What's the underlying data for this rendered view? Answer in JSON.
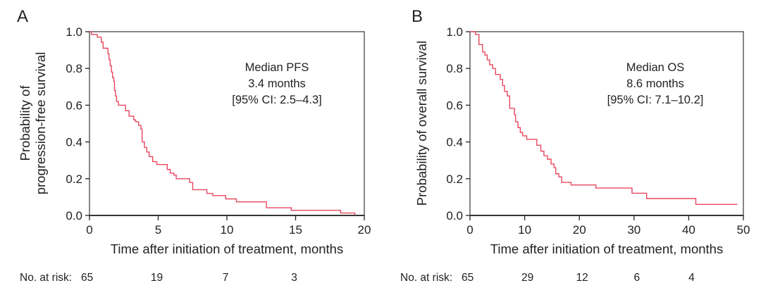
{
  "curve_color": "#e8485f",
  "chart_data": [
    {
      "type": "line",
      "step": true,
      "panel_label": "A",
      "xlabel": "Time after initiation of treatment, months",
      "ylabel_lines": [
        "Probability of",
        "progression-free survival"
      ],
      "xlim": [
        0,
        20
      ],
      "ylim": [
        0,
        1
      ],
      "xticks": [
        0,
        5,
        10,
        15,
        20
      ],
      "yticks": [
        "0.0",
        "0.2",
        "0.4",
        "0.6",
        "0.8",
        "1.0"
      ],
      "annotation": [
        "Median PFS",
        "3.4 months",
        "[95% CI: 2.5–4.3]"
      ],
      "risk_label": "No. at risk:",
      "risk_table": [
        {
          "x": 0,
          "n": "65"
        },
        {
          "x": 5,
          "n": "19"
        },
        {
          "x": 10,
          "n": "7"
        },
        {
          "x": 15,
          "n": "3"
        }
      ],
      "series": [
        {
          "x": [
            0,
            0.14,
            0.57,
            0.86,
            0.99,
            1.34,
            1.42,
            1.51,
            1.6,
            1.68,
            1.77,
            1.82,
            1.89,
            1.97,
            2.11,
            2.62,
            2.88,
            3.22,
            3.36,
            3.57,
            3.74,
            3.83,
            4.0,
            4.17,
            4.34,
            4.6,
            4.9,
            5.66,
            5.88,
            6.14,
            6.31,
            7.29,
            7.51,
            8.54,
            8.97,
            9.91,
            10.69,
            12.88,
            14.68,
            18.28,
            19.31
          ],
          "y": [
            1.0,
            0.985,
            0.97,
            0.943,
            0.91,
            0.88,
            0.847,
            0.815,
            0.78,
            0.75,
            0.73,
            0.68,
            0.65,
            0.62,
            0.6,
            0.57,
            0.54,
            0.52,
            0.51,
            0.49,
            0.47,
            0.4,
            0.37,
            0.345,
            0.32,
            0.293,
            0.277,
            0.25,
            0.23,
            0.22,
            0.2,
            0.18,
            0.14,
            0.12,
            0.108,
            0.09,
            0.074,
            0.042,
            0.028,
            0.013,
            0.003
          ]
        }
      ]
    },
    {
      "type": "line",
      "step": true,
      "panel_label": "B",
      "xlabel": "Time after initiation of treatment, months",
      "ylabel_lines": [
        "Probability of overall survival"
      ],
      "xlim": [
        0,
        50
      ],
      "ylim": [
        0,
        1
      ],
      "xticks": [
        0,
        10,
        20,
        30,
        40,
        50
      ],
      "yticks": [
        "0.0",
        "0.2",
        "0.4",
        "0.6",
        "0.8",
        "1.0"
      ],
      "annotation": [
        "Median OS",
        "8.6 months",
        "[95% CI: 7.1–10.2]"
      ],
      "risk_label": "No. at risk:",
      "risk_table": [
        {
          "x": 0,
          "n": "65"
        },
        {
          "x": 10,
          "n": "29"
        },
        {
          "x": 20,
          "n": "12"
        },
        {
          "x": 30,
          "n": "6"
        },
        {
          "x": 40,
          "n": "4"
        }
      ],
      "series": [
        {
          "x": [
            0,
            0.99,
            1.64,
            2.29,
            2.72,
            3.15,
            3.59,
            4.15,
            4.67,
            5.53,
            5.96,
            6.31,
            6.83,
            7.26,
            8.12,
            8.34,
            8.77,
            9.2,
            9.63,
            10.37,
            12.22,
            12.96,
            13.52,
            14.17,
            14.82,
            15.38,
            15.68,
            16.24,
            16.76,
            18.49,
            23.02,
            29.63,
            32.31,
            41.3
          ],
          "y": [
            1.0,
            0.985,
            0.93,
            0.89,
            0.873,
            0.847,
            0.82,
            0.8,
            0.767,
            0.74,
            0.707,
            0.675,
            0.65,
            0.583,
            0.548,
            0.51,
            0.478,
            0.452,
            0.433,
            0.414,
            0.382,
            0.35,
            0.325,
            0.306,
            0.28,
            0.26,
            0.227,
            0.21,
            0.18,
            0.166,
            0.149,
            0.121,
            0.092,
            0.06
          ],
          "x_end": 48.9
        }
      ]
    }
  ]
}
